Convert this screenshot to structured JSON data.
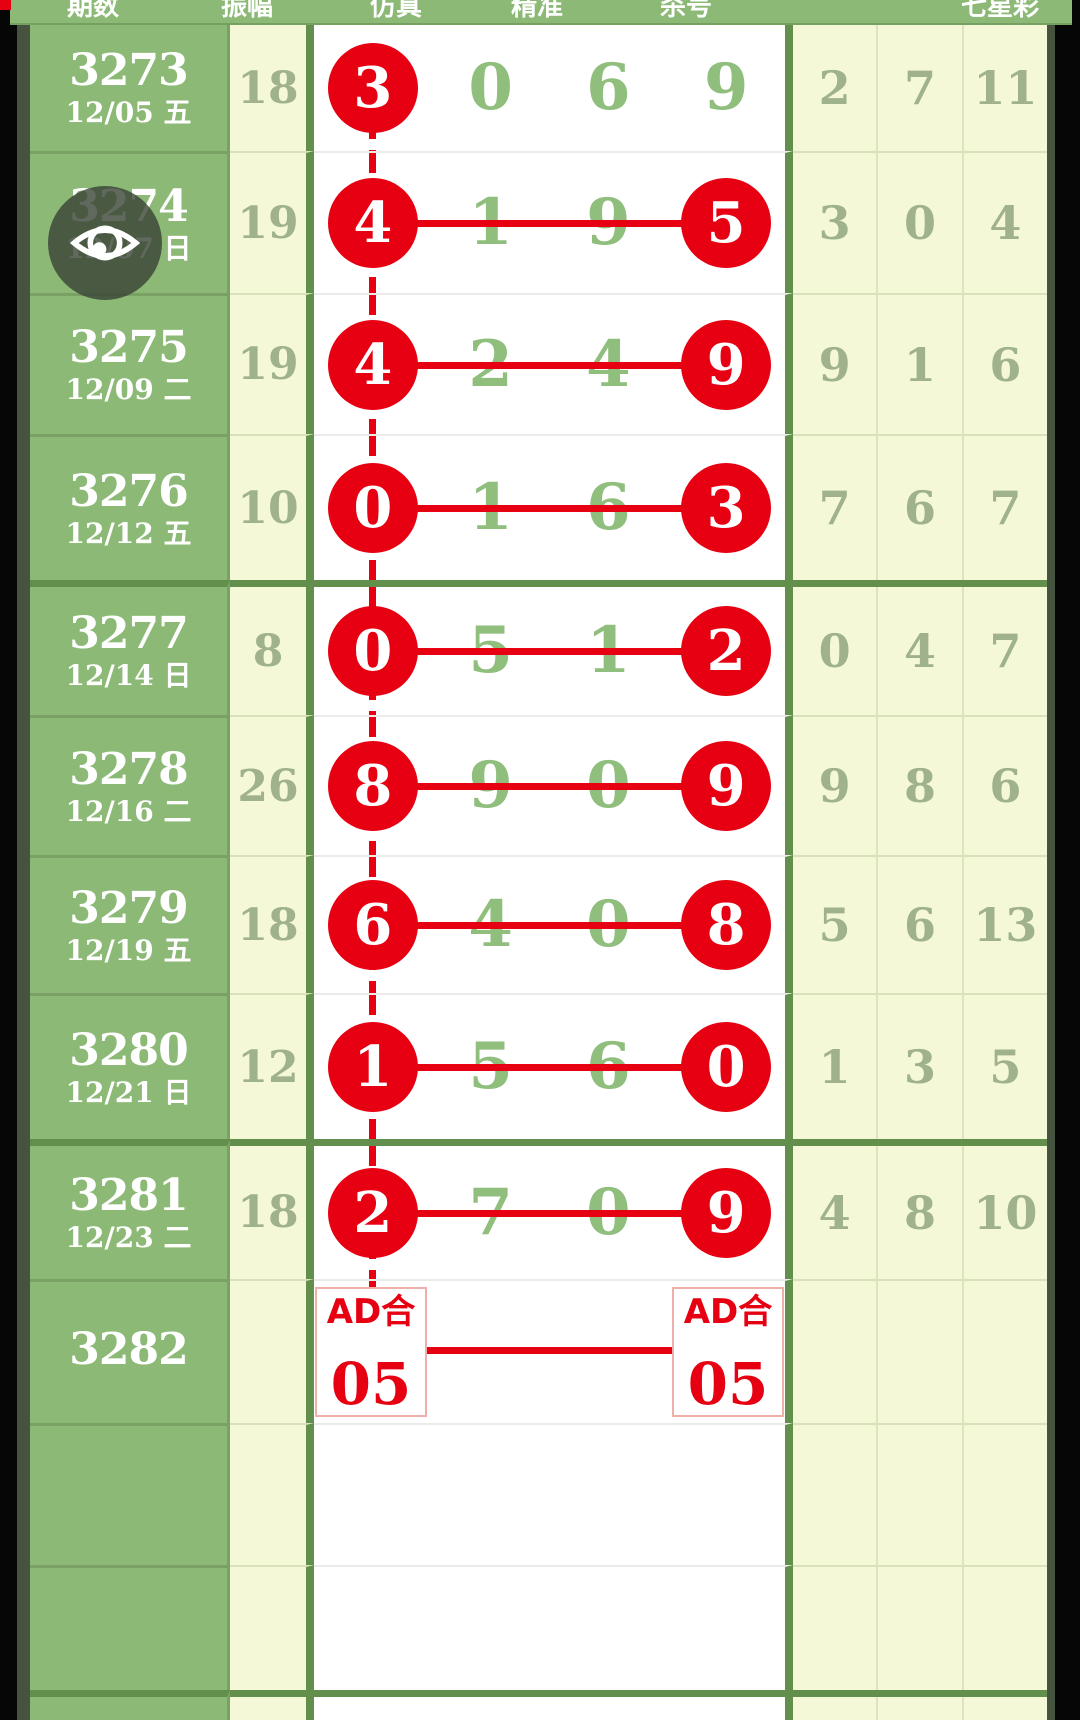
{
  "app": {
    "type": "lottery-trend-chart"
  },
  "colors": {
    "accent_red": "#e60012",
    "row_green": "#8cba76",
    "panel_yellow": "#f5f8d6",
    "digit_green": "#8fbe7d",
    "muted_green": "#9fb18d",
    "thick_border_green": "#628f4b"
  },
  "header": {
    "cropped_labels": [
      "期数",
      "振幅",
      "仿真",
      "精准",
      "杀号",
      "七星彩"
    ]
  },
  "eye_button": {
    "icon": "eye-icon"
  },
  "table": {
    "rows": [
      {
        "issue": "3273",
        "date": "12/05 五",
        "sum": "18",
        "digits": [
          "3",
          "0",
          "6",
          "9"
        ],
        "circled": [
          0
        ],
        "hline": false,
        "vline": "down",
        "right": [
          "2",
          "7",
          "11"
        ]
      },
      {
        "issue": "3274",
        "date": "12/07 日",
        "sum": "19",
        "digits": [
          "4",
          "1",
          "9",
          "5"
        ],
        "circled": [
          0,
          3
        ],
        "hline": true,
        "vline": "through",
        "right": [
          "3",
          "0",
          "4"
        ]
      },
      {
        "issue": "3275",
        "date": "12/09 二",
        "sum": "19",
        "digits": [
          "4",
          "2",
          "4",
          "9"
        ],
        "circled": [
          0,
          3
        ],
        "hline": true,
        "vline": "through",
        "right": [
          "9",
          "1",
          "6"
        ]
      },
      {
        "issue": "3276",
        "date": "12/12 五",
        "sum": "10",
        "digits": [
          "0",
          "1",
          "6",
          "3"
        ],
        "circled": [
          0,
          3
        ],
        "hline": true,
        "vline": "through",
        "right": [
          "7",
          "6",
          "7"
        ]
      },
      {
        "issue": "3277",
        "date": "12/14 日",
        "sum": "8",
        "digits": [
          "0",
          "5",
          "1",
          "2"
        ],
        "circled": [
          0,
          3
        ],
        "hline": true,
        "vline": "through",
        "right": [
          "0",
          "4",
          "7"
        ]
      },
      {
        "issue": "3278",
        "date": "12/16 二",
        "sum": "26",
        "digits": [
          "8",
          "9",
          "0",
          "9"
        ],
        "circled": [
          0,
          3
        ],
        "hline": true,
        "vline": "through",
        "right": [
          "9",
          "8",
          "6"
        ]
      },
      {
        "issue": "3279",
        "date": "12/19 五",
        "sum": "18",
        "digits": [
          "6",
          "4",
          "0",
          "8"
        ],
        "circled": [
          0,
          3
        ],
        "hline": true,
        "vline": "through",
        "right": [
          "5",
          "6",
          "13"
        ]
      },
      {
        "issue": "3280",
        "date": "12/21 日",
        "sum": "12",
        "digits": [
          "1",
          "5",
          "6",
          "0"
        ],
        "circled": [
          0,
          3
        ],
        "hline": true,
        "vline": "through",
        "right": [
          "1",
          "3",
          "5"
        ]
      },
      {
        "issue": "3281",
        "date": "12/23 二",
        "sum": "18",
        "digits": [
          "2",
          "7",
          "0",
          "9"
        ],
        "circled": [
          0,
          3
        ],
        "hline": true,
        "vline": "through",
        "right": [
          "4",
          "8",
          "10"
        ]
      },
      {
        "issue": "3282",
        "vline": "stub",
        "prediction": {
          "label": "AD合",
          "value": "05",
          "connected": true
        }
      },
      {},
      {},
      {}
    ]
  }
}
